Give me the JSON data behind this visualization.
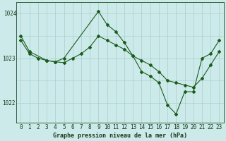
{
  "title": "Graphe pression niveau de la mer (hPa)",
  "bg_color": "#cceaea",
  "grid_color": "#aacccc",
  "line_color": "#1a5c1a",
  "marker_color": "#1a5c1a",
  "xlim": [
    -0.5,
    23.5
  ],
  "ylim": [
    1021.55,
    1024.25
  ],
  "yticks": [
    1022,
    1023
  ],
  "ytick_top": 1024,
  "xticks": [
    0,
    1,
    2,
    3,
    4,
    5,
    6,
    7,
    8,
    9,
    10,
    11,
    12,
    13,
    14,
    15,
    16,
    17,
    18,
    19,
    20,
    21,
    22,
    23
  ],
  "series1_x": [
    0,
    1,
    2,
    3,
    4,
    5,
    6,
    7,
    8,
    9,
    10,
    11,
    12,
    13,
    14,
    15,
    16,
    17,
    18,
    19,
    20,
    21,
    22,
    23
  ],
  "series1_y": [
    1023.4,
    1023.1,
    1023.0,
    1022.95,
    1022.92,
    1022.9,
    1023.0,
    1023.1,
    1023.25,
    1023.5,
    1023.4,
    1023.3,
    1023.2,
    1023.05,
    1022.95,
    1022.85,
    1022.7,
    1022.5,
    1022.45,
    1022.4,
    1022.35,
    1022.55,
    1022.85,
    1023.15
  ],
  "series2_x": [
    0,
    1,
    3,
    4,
    5,
    9,
    10,
    11,
    12,
    13,
    14,
    15,
    16,
    17,
    18,
    19,
    20,
    21,
    22,
    23
  ],
  "series2_y": [
    1023.5,
    1023.15,
    1022.95,
    1022.92,
    1023.0,
    1024.05,
    1023.75,
    1023.6,
    1023.35,
    1023.05,
    1022.7,
    1022.6,
    1022.45,
    1021.95,
    1021.75,
    1022.25,
    1022.25,
    1023.0,
    1023.1,
    1023.4
  ],
  "tick_fontsize": 5.5,
  "label_fontsize": 6.0
}
